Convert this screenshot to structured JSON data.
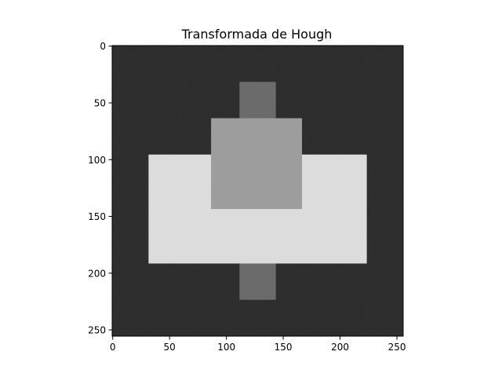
{
  "chart_data": {
    "type": "image",
    "title": "Transformada de Hough",
    "xlabel": "",
    "ylabel": "",
    "image_size": [
      256,
      256
    ],
    "xlim": [
      -0.5,
      255.5
    ],
    "ylim": [
      255.5,
      -0.5
    ],
    "x_ticks": [
      0,
      50,
      100,
      150,
      200,
      250
    ],
    "y_ticks": [
      0,
      50,
      100,
      150,
      200,
      250
    ],
    "grid": false,
    "colormap": "gray",
    "noise": true,
    "background_gray": 0.11,
    "regions": [
      {
        "name": "vertical-bar",
        "x0": 112,
        "x1": 144,
        "y0": 32,
        "y1": 224,
        "gray": 0.38
      },
      {
        "name": "wide-rectangle",
        "x0": 32,
        "x1": 224,
        "y0": 96,
        "y1": 192,
        "gray": 0.88
      },
      {
        "name": "square",
        "x0": 87,
        "x1": 167,
        "y0": 64,
        "y1": 144,
        "gray": 0.6
      }
    ]
  }
}
